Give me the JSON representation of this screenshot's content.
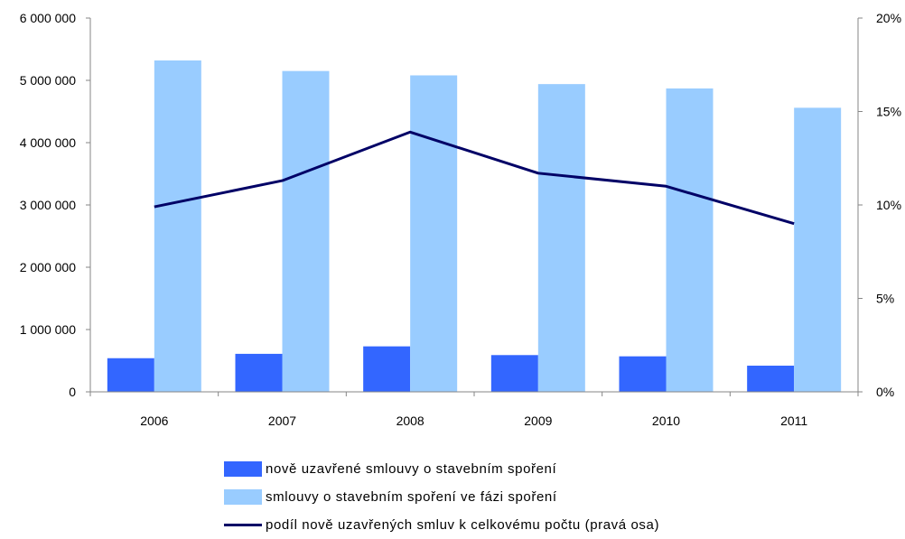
{
  "chart_data": {
    "type": "bar",
    "categories": [
      "2006",
      "2007",
      "2008",
      "2009",
      "2010",
      "2011"
    ],
    "series": [
      {
        "name": "nově uzavřené smlouvy o stavebním spoření",
        "kind": "bar",
        "axis": "left",
        "color": "#3366ff",
        "values": [
          540000,
          610000,
          730000,
          590000,
          570000,
          420000
        ]
      },
      {
        "name": "smlouvy o stavebním spoření ve fázi spoření",
        "kind": "bar",
        "axis": "left",
        "color": "#99ccff",
        "values": [
          5320000,
          5150000,
          5080000,
          4940000,
          4870000,
          4560000
        ]
      },
      {
        "name": "podíl nově uzavřených smluv k celkovému počtu (pravá osa)",
        "kind": "line",
        "axis": "right",
        "color": "#000066",
        "values": [
          0.099,
          0.113,
          0.139,
          0.117,
          0.11,
          0.09
        ]
      }
    ],
    "left_axis": {
      "min": 0,
      "max": 6000000,
      "ticks": [
        0,
        1000000,
        2000000,
        3000000,
        4000000,
        5000000,
        6000000
      ],
      "tick_labels": [
        "0",
        "1 000 000",
        "2 000 000",
        "3 000 000",
        "4 000 000",
        "5 000 000",
        "6 000 000"
      ]
    },
    "right_axis": {
      "min": 0,
      "max": 0.2,
      "ticks": [
        0,
        0.05,
        0.1,
        0.15,
        0.2
      ],
      "tick_labels": [
        "0%",
        "5%",
        "10%",
        "15%",
        "20%"
      ]
    },
    "grid": false,
    "legend_position": "bottom"
  }
}
